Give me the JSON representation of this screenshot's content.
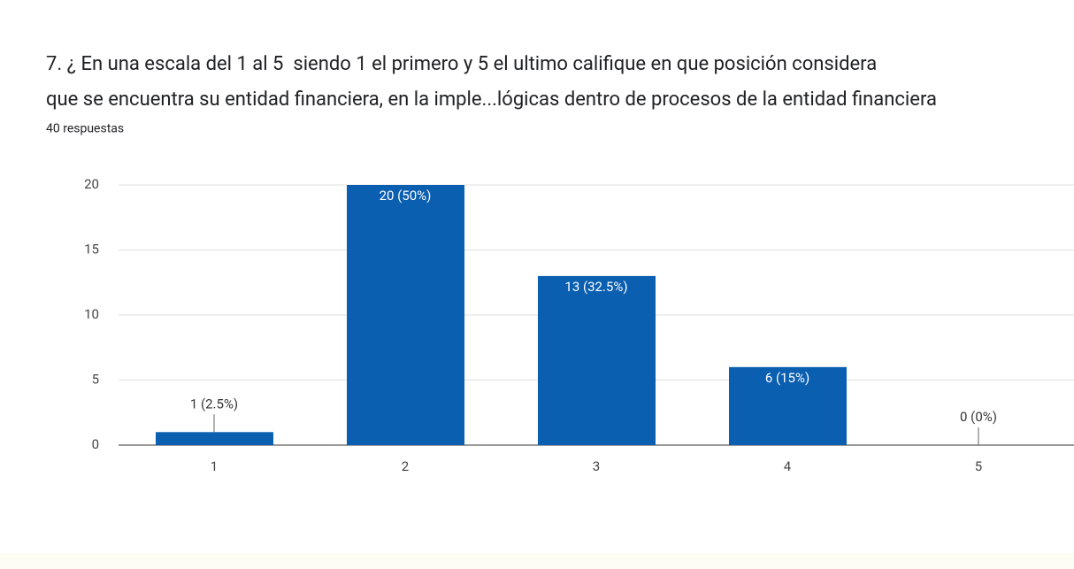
{
  "chart_data": {
    "type": "bar",
    "title": [
      "7. ¿ En una escala del 1 al 5  siendo 1 el primero y 5 el ultimo califique en que posición considera",
      "que se encuentra su entidad financiera, en la imple...lógicas dentro de procesos de la entidad financiera"
    ],
    "subtitle": "40 respuestas",
    "categories": [
      "1",
      "2",
      "3",
      "4",
      "5"
    ],
    "values": [
      1,
      20,
      13,
      6,
      0
    ],
    "value_labels": [
      "1 (2.5%)",
      "20 (50%)",
      "13 (32.5%)",
      "6 (15%)",
      "0 (0%)"
    ],
    "color": "#0b5fb0",
    "ylim": [
      0,
      20
    ],
    "yticks": [
      0,
      5,
      10,
      15,
      20
    ],
    "grid": true
  }
}
